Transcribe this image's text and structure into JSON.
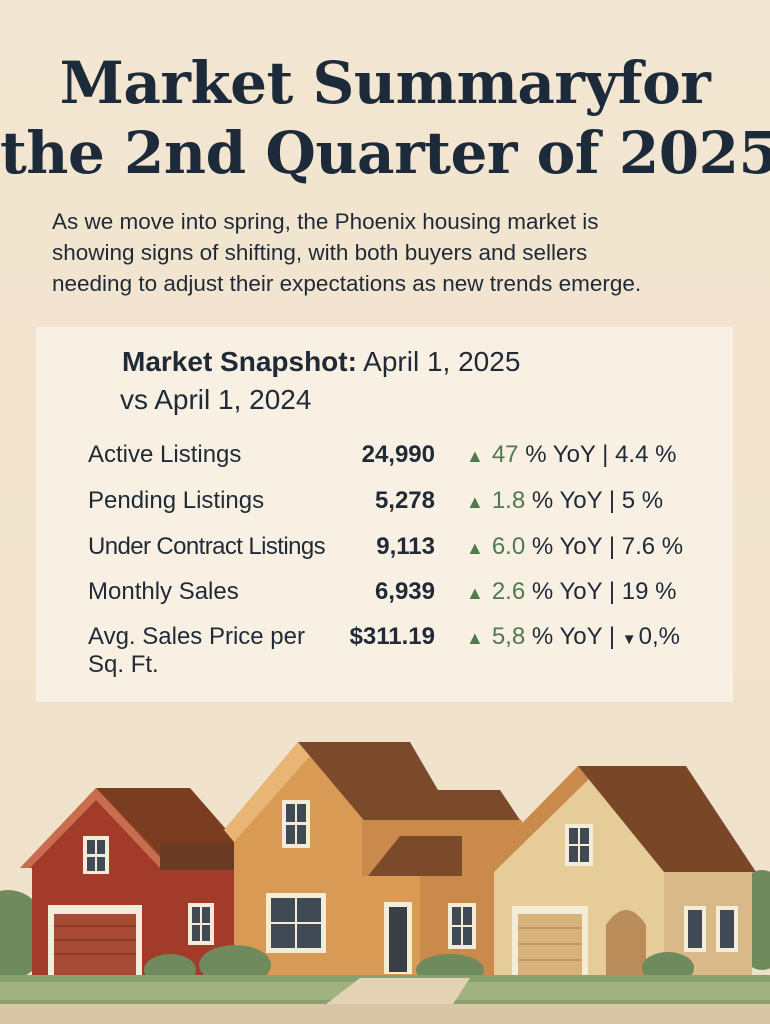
{
  "title": {
    "line1": "Market Summaryfor",
    "line2": "the 2nd Quarter of 2025"
  },
  "intro": {
    "line1": "As we move into spring, the Phoenix housing market is",
    "line2": "showing signs of shifting, with both buyers and sellers",
    "line3": "needing to adjust their expectations as new trends emerge."
  },
  "snapshot": {
    "heading_bold": "Market Snapshot:",
    "heading_date": "April 1, 2025",
    "heading_line2": "vs April 1, 2024"
  },
  "rows": [
    {
      "label": "Active Listings",
      "value": "24,990",
      "change": "47",
      "suffix": "% YoY | 4.4 %"
    },
    {
      "label": "Pending Listings",
      "value": "5,278",
      "change": "1.8",
      "suffix": "% YoY | 5 %"
    },
    {
      "label": "Under Contract Listings",
      "value": "9,113",
      "change": "6.0",
      "suffix": "% YoY | 7.6 %"
    },
    {
      "label": "Monthly Sales",
      "value": "6,939",
      "change": "2.6",
      "suffix": "% YoY | 19 %"
    },
    {
      "label": "Avg. Sales Price per",
      "label2": "Sq. Ft.",
      "value": "$311.19",
      "change": "5,8",
      "suffix": "% YoY |",
      "down_value": "0,%"
    }
  ],
  "colors": {
    "accent_green": "#4e7a4e",
    "title": "#1d2a39",
    "background": "#f3e6d2"
  },
  "icons": {
    "increase": "triangle-up-icon",
    "decrease": "triangle-down-icon"
  }
}
